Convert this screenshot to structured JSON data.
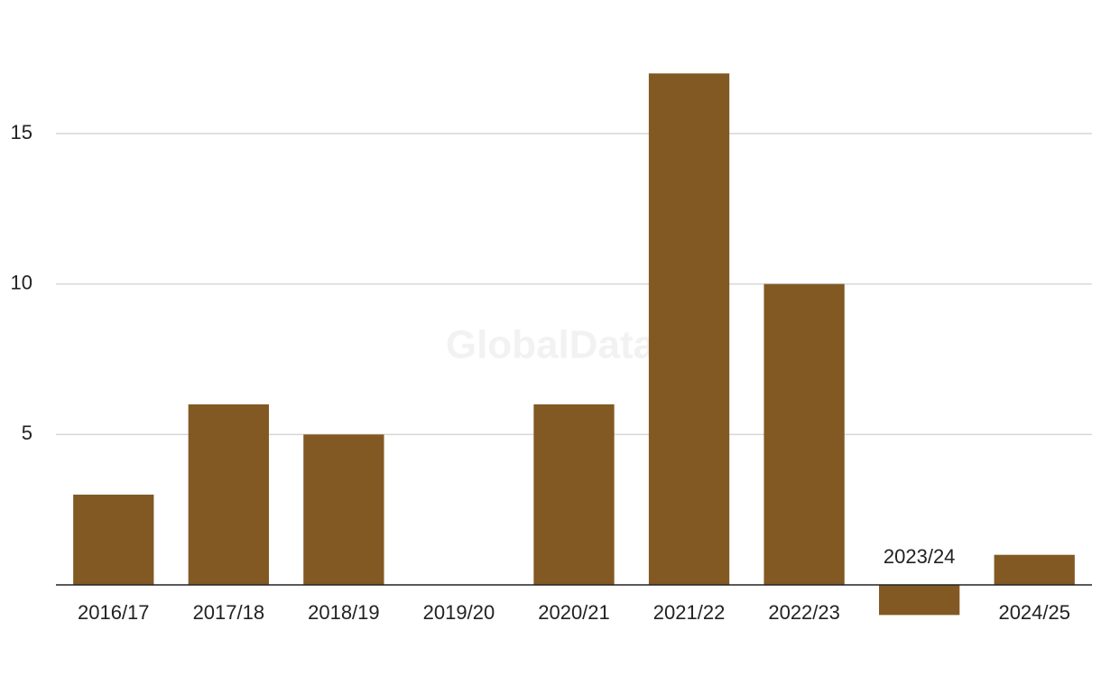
{
  "chart_data": {
    "type": "bar",
    "watermark": "GlobalData",
    "categories": [
      "2016/17",
      "2017/18",
      "2018/19",
      "2019/20",
      "2020/21",
      "2021/22",
      "2022/23",
      "2023/24",
      "2024/25"
    ],
    "values": [
      3,
      6,
      5,
      0,
      6,
      17,
      10,
      -1,
      1
    ],
    "color": "#825923",
    "ylim": [
      -2,
      18
    ],
    "yticks": [
      5,
      10,
      15
    ],
    "grid": true
  }
}
